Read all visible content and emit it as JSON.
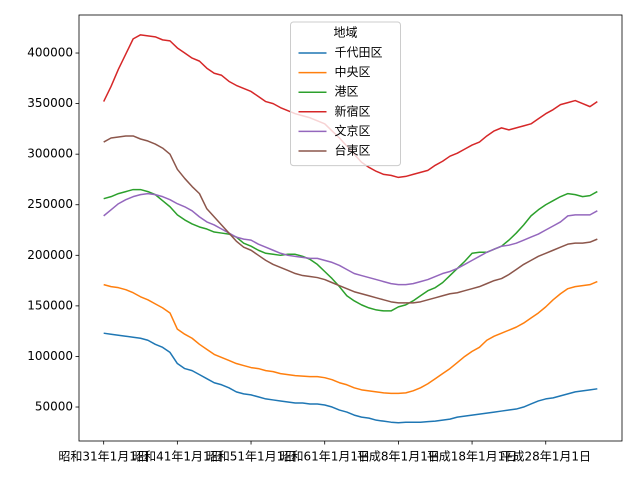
{
  "chart_data": {
    "type": "line",
    "legend_title": "地域",
    "legend": "upper center",
    "categories": [
      "昭和31年1月1日",
      null,
      null,
      null,
      null,
      null,
      null,
      null,
      null,
      null,
      "昭和41年1月1日",
      null,
      null,
      null,
      null,
      null,
      null,
      null,
      null,
      null,
      "昭和51年1月1日",
      null,
      null,
      null,
      null,
      null,
      null,
      null,
      null,
      null,
      "昭和61年1月1日",
      null,
      null,
      null,
      null,
      null,
      null,
      null,
      null,
      null,
      "平成8年1月1日",
      null,
      null,
      null,
      null,
      null,
      null,
      null,
      null,
      null,
      "平成18年1月1日",
      null,
      null,
      null,
      null,
      null,
      null,
      null,
      null,
      null,
      "平成28年1月1日",
      null,
      null,
      null,
      null,
      null,
      null,
      null
    ],
    "ylim": [
      16400,
      437600
    ],
    "yticks": [
      50000,
      100000,
      150000,
      200000,
      250000,
      300000,
      350000,
      400000
    ],
    "series": [
      {
        "name": "千代田区",
        "color": "#1f77b4",
        "values": [
          123000,
          122000,
          121000,
          120000,
          119000,
          118000,
          116000,
          112000,
          109000,
          104000,
          93000,
          88000,
          86000,
          82000,
          78000,
          74000,
          72000,
          69000,
          65000,
          63000,
          62000,
          60000,
          58000,
          57000,
          56000,
          55000,
          54000,
          54000,
          53000,
          53000,
          52000,
          50000,
          47000,
          45000,
          42000,
          40000,
          39000,
          37000,
          36000,
          35000,
          34500,
          35000,
          35000,
          35000,
          35500,
          36000,
          37000,
          38000,
          40000,
          41000,
          42000,
          43000,
          44000,
          45000,
          46000,
          47000,
          48000,
          50000,
          53000,
          56000,
          58000,
          59000,
          61000,
          63000,
          65000,
          66000,
          67000,
          68000
        ]
      },
      {
        "name": "中央区",
        "color": "#ff7f0e",
        "values": [
          171000,
          169000,
          168000,
          166000,
          163000,
          159000,
          156000,
          152000,
          148000,
          143000,
          127000,
          122000,
          118000,
          112000,
          107000,
          102000,
          99000,
          96000,
          93000,
          91000,
          89000,
          88000,
          86000,
          85000,
          83000,
          82000,
          81000,
          80500,
          80000,
          80000,
          79000,
          77000,
          74000,
          72000,
          69000,
          67000,
          66000,
          65000,
          64000,
          63500,
          63500,
          64000,
          66000,
          69000,
          73000,
          78000,
          83000,
          88000,
          94000,
          100000,
          105000,
          109000,
          116000,
          120000,
          123000,
          126000,
          129000,
          133000,
          138000,
          143000,
          149000,
          156000,
          162000,
          167000,
          169000,
          170000,
          171000,
          174000
        ]
      },
      {
        "name": "港区",
        "color": "#2ca02c",
        "values": [
          256000,
          258000,
          261000,
          263000,
          265000,
          265000,
          263000,
          260000,
          254000,
          248000,
          240000,
          235000,
          231000,
          228000,
          226000,
          223000,
          222000,
          221000,
          218000,
          212000,
          209000,
          205000,
          202000,
          201000,
          200000,
          201000,
          201000,
          199000,
          196000,
          191000,
          184000,
          177000,
          169000,
          160000,
          155000,
          151000,
          148000,
          146000,
          145000,
          145000,
          149000,
          151000,
          155000,
          160000,
          165000,
          168000,
          173000,
          180000,
          187000,
          194000,
          202000,
          203000,
          203000,
          206000,
          209000,
          215000,
          222000,
          230000,
          239000,
          245000,
          250000,
          254000,
          258000,
          261000,
          260000,
          258000,
          259000,
          263000
        ]
      },
      {
        "name": "新宿区",
        "color": "#d62728",
        "values": [
          352000,
          367000,
          384000,
          399000,
          414000,
          418000,
          417000,
          416000,
          413000,
          412000,
          405000,
          400000,
          395000,
          392000,
          385000,
          380000,
          378000,
          372000,
          368000,
          365000,
          362000,
          357000,
          352000,
          350000,
          346000,
          343000,
          340000,
          338000,
          336000,
          333000,
          330000,
          323000,
          316000,
          308000,
          300000,
          292000,
          287000,
          283000,
          280000,
          279000,
          277000,
          278000,
          280000,
          282000,
          284000,
          289000,
          293000,
          298000,
          301000,
          305000,
          309000,
          312000,
          318000,
          323000,
          326000,
          324000,
          326000,
          328000,
          330000,
          335000,
          340000,
          344000,
          349000,
          351000,
          353000,
          350000,
          347000,
          352000
        ]
      },
      {
        "name": "文京区",
        "color": "#9467bd",
        "values": [
          239000,
          245000,
          251000,
          255000,
          258000,
          260000,
          261000,
          260000,
          258000,
          255000,
          251000,
          248000,
          244000,
          238000,
          233000,
          230000,
          226000,
          222000,
          218000,
          216000,
          215000,
          211000,
          208000,
          205000,
          202000,
          200000,
          199000,
          198000,
          197000,
          197000,
          195000,
          193000,
          190000,
          186000,
          182000,
          180000,
          178000,
          176000,
          174000,
          172000,
          171000,
          171000,
          172000,
          174000,
          176000,
          179000,
          182000,
          184000,
          187000,
          191000,
          195000,
          199000,
          203000,
          206000,
          209000,
          210000,
          212000,
          215000,
          218000,
          221000,
          225000,
          229000,
          233000,
          239000,
          240000,
          240000,
          240000,
          244000
        ]
      },
      {
        "name": "台東区",
        "color": "#8c564b",
        "values": [
          312000,
          316000,
          317000,
          318000,
          318000,
          315000,
          313000,
          310000,
          306000,
          300000,
          285000,
          276000,
          268000,
          261000,
          246000,
          238000,
          230000,
          222000,
          214000,
          208000,
          205000,
          200000,
          195000,
          191000,
          188000,
          185000,
          182000,
          180000,
          179000,
          178000,
          176000,
          173000,
          170000,
          167000,
          164000,
          162000,
          160000,
          158000,
          156000,
          154000,
          153000,
          153000,
          153000,
          154000,
          156000,
          158000,
          160000,
          162000,
          163000,
          165000,
          167000,
          169000,
          172000,
          175000,
          177000,
          181000,
          186000,
          191000,
          195000,
          199000,
          202000,
          205000,
          208000,
          211000,
          212000,
          212000,
          213000,
          216000
        ]
      }
    ]
  }
}
